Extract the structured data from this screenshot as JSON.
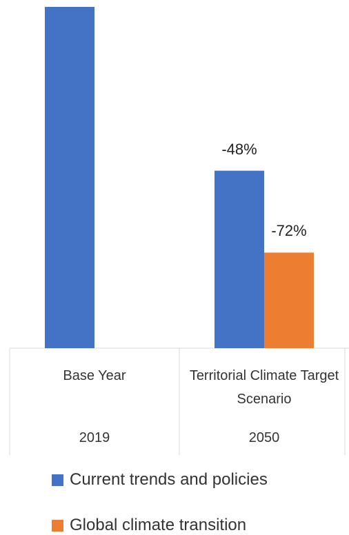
{
  "chart_data": {
    "type": "bar",
    "categories": [
      "Base Year",
      "Territorial Climate Target Scenario"
    ],
    "years": [
      "2019",
      "2050"
    ],
    "series": [
      {
        "name": "Current trends and policies",
        "color": "#4472c4",
        "values": [
          100,
          52
        ]
      },
      {
        "name": "Global climate transition",
        "color": "#ed7d31",
        "values": [
          null,
          28
        ]
      }
    ],
    "annotations": [
      "-48%",
      "-72%"
    ],
    "ylim": [
      0,
      100
    ]
  }
}
